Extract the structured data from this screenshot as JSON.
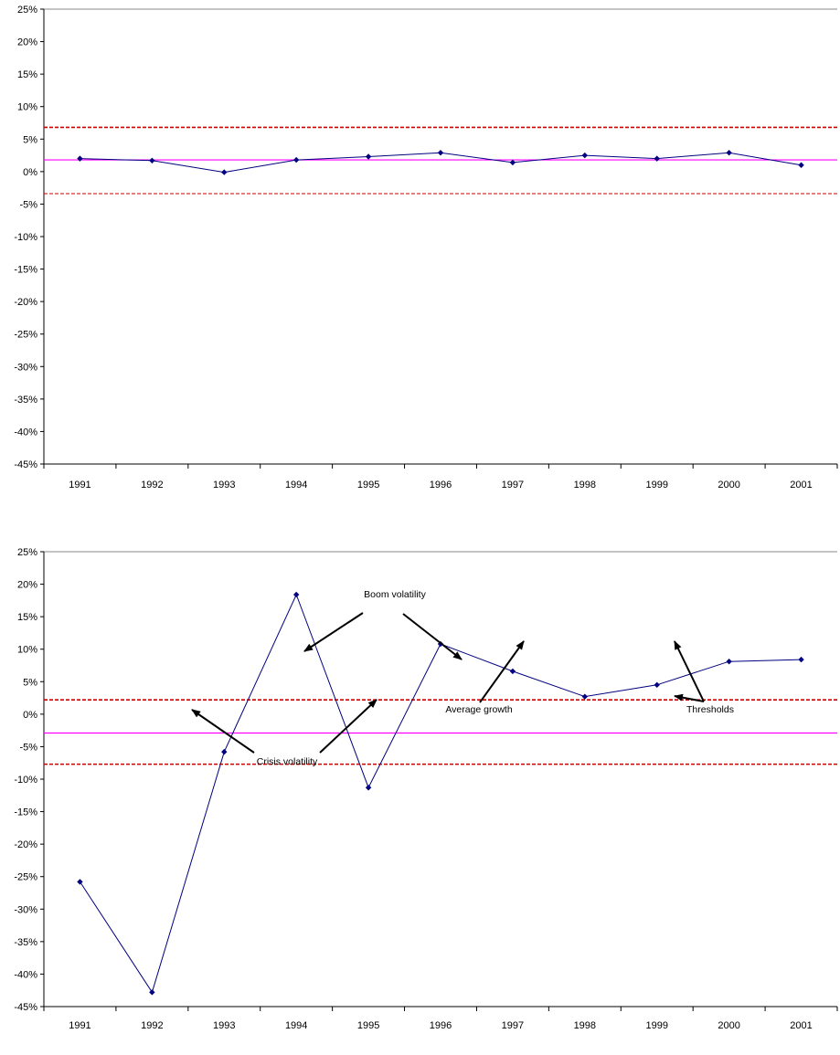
{
  "colors": {
    "series": "#000080",
    "average": "#ff00ff",
    "threshold": "#cc0000",
    "axis": "#000000",
    "annotation_arrow": "#000000"
  },
  "chart_data": [
    {
      "type": "line",
      "x": [
        "1991",
        "1992",
        "1993",
        "1994",
        "1995",
        "1996",
        "1997",
        "1998",
        "1999",
        "2000",
        "2001"
      ],
      "series": [
        {
          "values": [
            2.0,
            1.7,
            -0.1,
            1.8,
            2.3,
            2.9,
            1.4,
            2.5,
            2.0,
            2.9,
            1.0
          ]
        }
      ],
      "reference_lines": {
        "average": 1.8,
        "upper_threshold": 6.8,
        "lower_threshold": -3.4
      },
      "ylim": [
        -45,
        25
      ],
      "y_ticks": [
        "25%",
        "20%",
        "15%",
        "10%",
        "5%",
        "0%",
        "-5%",
        "-10%",
        "-15%",
        "-20%",
        "-25%",
        "-30%",
        "-35%",
        "-40%",
        "-45%"
      ],
      "grid": false,
      "annotations": []
    },
    {
      "type": "line",
      "x": [
        "1991",
        "1992",
        "1993",
        "1994",
        "1995",
        "1996",
        "1997",
        "1998",
        "1999",
        "2000",
        "2001"
      ],
      "series": [
        {
          "values": [
            -25.8,
            -42.8,
            -5.8,
            18.4,
            -11.3,
            10.8,
            6.6,
            2.7,
            4.5,
            8.1,
            8.4
          ]
        }
      ],
      "reference_lines": {
        "average": -2.9,
        "upper_threshold": 2.2,
        "lower_threshold": -7.7
      },
      "ylim": [
        -45,
        25
      ],
      "y_ticks": [
        "25%",
        "20%",
        "15%",
        "10%",
        "5%",
        "0%",
        "-5%",
        "-10%",
        "-15%",
        "-20%",
        "-25%",
        "-30%",
        "-35%",
        "-40%",
        "-45%"
      ],
      "grid": false,
      "annotations": [
        {
          "text": "Boom volatility"
        },
        {
          "text": "Crisis volatility"
        },
        {
          "text": "Average growth"
        },
        {
          "text": "Thresholds"
        }
      ]
    }
  ]
}
